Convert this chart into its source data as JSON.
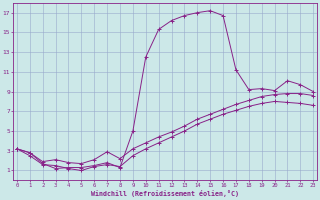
{
  "xlabel": "Windchill (Refroidissement éolien,°C)",
  "bg_color": "#cce8e8",
  "line_color": "#882288",
  "grid_color": "#99aacc",
  "xmin": 0,
  "xmax": 23,
  "ymin": 0,
  "ymax": 18,
  "yticks": [
    1,
    3,
    5,
    7,
    9,
    11,
    13,
    15,
    17
  ],
  "xticks": [
    0,
    1,
    2,
    3,
    4,
    5,
    6,
    7,
    8,
    9,
    10,
    11,
    12,
    13,
    14,
    15,
    16,
    17,
    18,
    19,
    20,
    21,
    22,
    23
  ],
  "line1_x": [
    0,
    1,
    2,
    3,
    4,
    5,
    6,
    7,
    8,
    9,
    10,
    11,
    12,
    13,
    14,
    15,
    16,
    17,
    18,
    19,
    20,
    21,
    22,
    23
  ],
  "line1_y": [
    3.2,
    2.8,
    1.7,
    1.2,
    1.3,
    1.3,
    1.5,
    1.8,
    1.3,
    5.0,
    12.5,
    15.3,
    16.2,
    16.7,
    17.0,
    17.2,
    16.7,
    11.2,
    9.2,
    9.3,
    9.1,
    10.1,
    9.7,
    9.0
  ],
  "line2_x": [
    0,
    1,
    2,
    3,
    4,
    5,
    6,
    7,
    8,
    9,
    10,
    11,
    12,
    13,
    14,
    15,
    16,
    17,
    18,
    19,
    20,
    21,
    22,
    23
  ],
  "line2_y": [
    3.2,
    2.8,
    1.9,
    2.1,
    1.8,
    1.7,
    2.1,
    2.9,
    2.2,
    3.2,
    3.8,
    4.4,
    4.9,
    5.5,
    6.2,
    6.7,
    7.2,
    7.7,
    8.1,
    8.5,
    8.7,
    8.8,
    8.8,
    8.6
  ],
  "line3_x": [
    0,
    1,
    2,
    3,
    4,
    5,
    6,
    7,
    8,
    9,
    10,
    11,
    12,
    13,
    14,
    15,
    16,
    17,
    18,
    19,
    20,
    21,
    22,
    23
  ],
  "line3_y": [
    3.2,
    2.5,
    1.6,
    1.5,
    1.2,
    1.0,
    1.4,
    1.6,
    1.4,
    2.5,
    3.2,
    3.8,
    4.4,
    5.0,
    5.7,
    6.2,
    6.7,
    7.1,
    7.5,
    7.8,
    8.0,
    7.9,
    7.8,
    7.6
  ]
}
